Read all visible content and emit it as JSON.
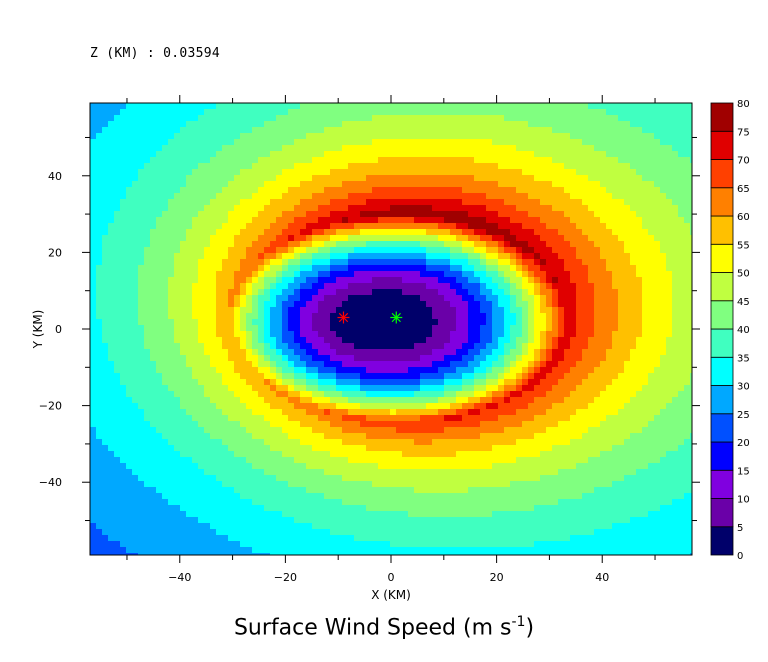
{
  "header": {
    "level_label": "Z (KM) : 0.03594"
  },
  "chart_data": {
    "type": "heatmap",
    "title": "Surface Wind Speed (m s",
    "title_superscript": "-1",
    "title_suffix": ")",
    "xlabel": "X (KM)",
    "ylabel": "Y (KM)",
    "xlim": [
      -57,
      57
    ],
    "ylim": [
      -59,
      59
    ],
    "x_ticks": [
      -40,
      -20,
      0,
      20,
      40
    ],
    "y_ticks": [
      -40,
      -20,
      0,
      20,
      40
    ],
    "colorbar": {
      "levels": [
        0,
        5,
        10,
        15,
        20,
        25,
        30,
        35,
        40,
        45,
        50,
        55,
        60,
        65,
        70,
        75,
        80
      ],
      "colors": [
        "#00006a",
        "#6a00a8",
        "#8000e0",
        "#0000ff",
        "#0050ff",
        "#00a8ff",
        "#00ffff",
        "#40ffc0",
        "#80ff80",
        "#c0ff40",
        "#ffff00",
        "#ffc000",
        "#ff8000",
        "#ff4000",
        "#e00000",
        "#a00000"
      ]
    },
    "features": {
      "calm_center": [
        -2,
        2
      ],
      "max_wind_ring_radius_km": 27,
      "max_band": "northeast / east, 65-75 m/s"
    },
    "markers": [
      {
        "name": "red-star",
        "x": -9,
        "y": 3,
        "color": "#ff0000"
      },
      {
        "name": "green-star",
        "x": 1,
        "y": 3,
        "color": "#00ff00"
      }
    ]
  }
}
